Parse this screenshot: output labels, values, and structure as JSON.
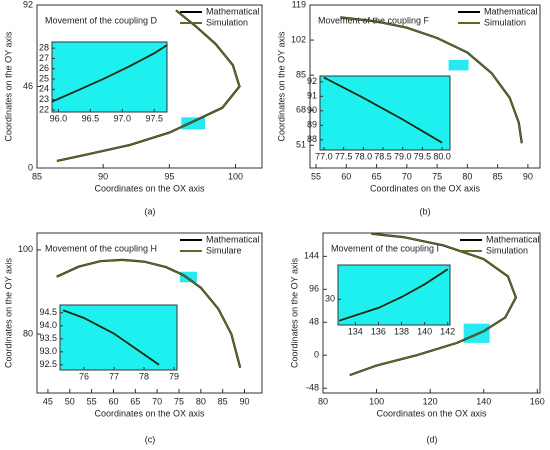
{
  "chart_data": [
    {
      "type": "line",
      "label": "(a)",
      "title": "Movement of the coupling D",
      "x_label": "Coordinates on the OX axis",
      "y_label": "Coordinates on the OY axis",
      "legend": "top-right",
      "xlim": [
        85,
        102
      ],
      "xticks": [
        85,
        90,
        95,
        100
      ],
      "ylim": [
        0,
        92
      ],
      "yticks": [
        0,
        46,
        92
      ],
      "series": [
        {
          "name": "Mathematical",
          "color": "#000000",
          "x": [
            86.5,
            89,
            92,
            95,
            97,
            99,
            100.3,
            99.8,
            98.5,
            97,
            95.5
          ],
          "values": [
            4,
            8,
            13,
            20,
            27,
            34,
            46,
            58,
            70,
            80,
            89
          ]
        },
        {
          "name": "Simulation",
          "color": "#5b6b2a",
          "x": [
            86.5,
            89,
            92,
            95,
            97,
            99,
            100.3,
            99.8,
            98.5,
            97,
            95.5
          ],
          "values": [
            4,
            8,
            13,
            20,
            27,
            34,
            46,
            58,
            70,
            80,
            89
          ]
        }
      ],
      "inset": {
        "xlim": [
          95.9,
          97.7
        ],
        "xticks": [
          {
            "value": 96,
            "label": "96.0"
          },
          96.5,
          {
            "value": 97,
            "label": "97.0"
          },
          97.5
        ],
        "ylim": [
          21.8,
          28.6
        ],
        "yticks": [
          22,
          23,
          24,
          25,
          26,
          27,
          28
        ],
        "x": [
          95.9,
          96.3,
          96.7,
          97.1,
          97.5,
          97.7
        ],
        "values": [
          22.8,
          23.9,
          25.0,
          26.2,
          27.5,
          28.3
        ]
      }
    },
    {
      "type": "line",
      "label": "(b)",
      "title": "Movement of the coupling F",
      "x_label": "Coordinates on the OX axis",
      "y_label": "Coordinates on the OY axis",
      "legend": "top-right",
      "xlim": [
        54,
        92
      ],
      "xticks": [
        55,
        60,
        65,
        70,
        75,
        80,
        85,
        90
      ],
      "ylim": [
        40,
        119
      ],
      "yticks": [
        51,
        68,
        85,
        102,
        119
      ],
      "series": [
        {
          "name": "Mathematical",
          "color": "#000000",
          "x": [
            59,
            65,
            70,
            75,
            80,
            84,
            87,
            88.5,
            89
          ],
          "values": [
            113,
            111,
            108,
            103,
            96,
            86,
            74,
            62,
            52
          ]
        },
        {
          "name": "Simulation",
          "color": "#5b6b2a",
          "x": [
            59,
            65,
            70,
            75,
            80,
            84,
            87,
            88.5,
            89
          ],
          "values": [
            113,
            111,
            108,
            103,
            96,
            86,
            74,
            62,
            52
          ]
        }
      ],
      "inset": {
        "xlim": [
          76.9,
          80.2
        ],
        "xticks": [
          {
            "value": 77,
            "label": "77.0"
          },
          77.5,
          {
            "value": 78,
            "label": "78.0"
          },
          78.5,
          {
            "value": 79,
            "label": "79.0"
          },
          79.5,
          {
            "value": 80,
            "label": "80.0"
          }
        ],
        "ylim": [
          87.3,
          92.4
        ],
        "yticks": [
          88,
          89,
          90,
          91,
          92
        ],
        "x": [
          77,
          78,
          79,
          80
        ],
        "values": [
          92.3,
          90.9,
          89.4,
          87.8
        ]
      }
    },
    {
      "type": "line",
      "label": "(c)",
      "title": "Movement of the coupling H",
      "x_label": "Coordinates on the OX axis",
      "y_label": "Coordinates on the OY axis",
      "legend": "top-right",
      "xlim": [
        42.5,
        94
      ],
      "xticks": [
        45,
        50,
        55,
        60,
        65,
        70,
        75,
        80,
        85,
        90
      ],
      "ylim": [
        66,
        104
      ],
      "yticks": [
        80,
        100
      ],
      "series": [
        {
          "name": "Mathematical",
          "color": "#000000",
          "x": [
            47,
            52,
            57,
            62,
            67,
            72,
            76,
            80,
            84,
            87,
            89
          ],
          "values": [
            93.6,
            96,
            97.3,
            97.6,
            97.2,
            95.9,
            94,
            91,
            86,
            80,
            72
          ]
        },
        {
          "name": "Simulare",
          "color": "#5b6b2a",
          "x": [
            47,
            52,
            57,
            62,
            67,
            72,
            76,
            80,
            84,
            87,
            89
          ],
          "values": [
            93.6,
            96,
            97.3,
            97.6,
            97.2,
            95.9,
            94,
            91,
            86,
            80,
            72
          ]
        }
      ],
      "inset": {
        "xlim": [
          75.2,
          79.1
        ],
        "xticks": [
          76,
          77,
          78,
          79
        ],
        "ylim": [
          92.3,
          94.8
        ],
        "yticks": [
          92.5,
          {
            "value": 93,
            "label": "93.0"
          },
          93.5,
          {
            "value": 94,
            "label": "94.0"
          },
          94.5
        ],
        "x": [
          75.3,
          76.0,
          76.5,
          77.0,
          77.5,
          78.0,
          78.5
        ],
        "values": [
          94.6,
          94.3,
          94.0,
          93.7,
          93.3,
          92.9,
          92.5
        ]
      }
    },
    {
      "type": "line",
      "label": "(d)",
      "title": "Movement of the coupling I",
      "x_label": "Coordinates on the OX axis",
      "y_label": "Coordinates on the OY axis",
      "legend": "top-right",
      "xlim": [
        80,
        161
      ],
      "xticks": [
        80,
        100,
        120,
        140,
        160
      ],
      "ylim": [
        -55,
        178
      ],
      "yticks": [
        -48,
        0,
        48,
        96,
        144
      ],
      "series": [
        {
          "name": "Mathematical",
          "color": "#000000",
          "x": [
            90,
            100,
            115,
            130,
            140,
            148,
            152,
            149,
            140,
            125,
            110,
            98
          ],
          "values": [
            -29,
            -15,
            0,
            18,
            35,
            55,
            84,
            115,
            140,
            160,
            172,
            177
          ]
        },
        {
          "name": "Simulation",
          "color": "#5b6b2a",
          "x": [
            90,
            100,
            115,
            130,
            140,
            148,
            152,
            149,
            140,
            125,
            110,
            98
          ],
          "values": [
            -29,
            -15,
            0,
            18,
            35,
            55,
            84,
            115,
            140,
            160,
            172,
            177
          ]
        }
      ],
      "inset": {
        "xlim": [
          132.5,
          142.2
        ],
        "xticks": [
          134,
          136,
          138,
          140,
          142
        ],
        "ylim": [
          18,
          46
        ],
        "yticks": [
          30
        ],
        "x": [
          132.6,
          134,
          136,
          138,
          140,
          142
        ],
        "values": [
          20,
          22.5,
          26,
          31,
          37,
          44
        ]
      }
    }
  ]
}
